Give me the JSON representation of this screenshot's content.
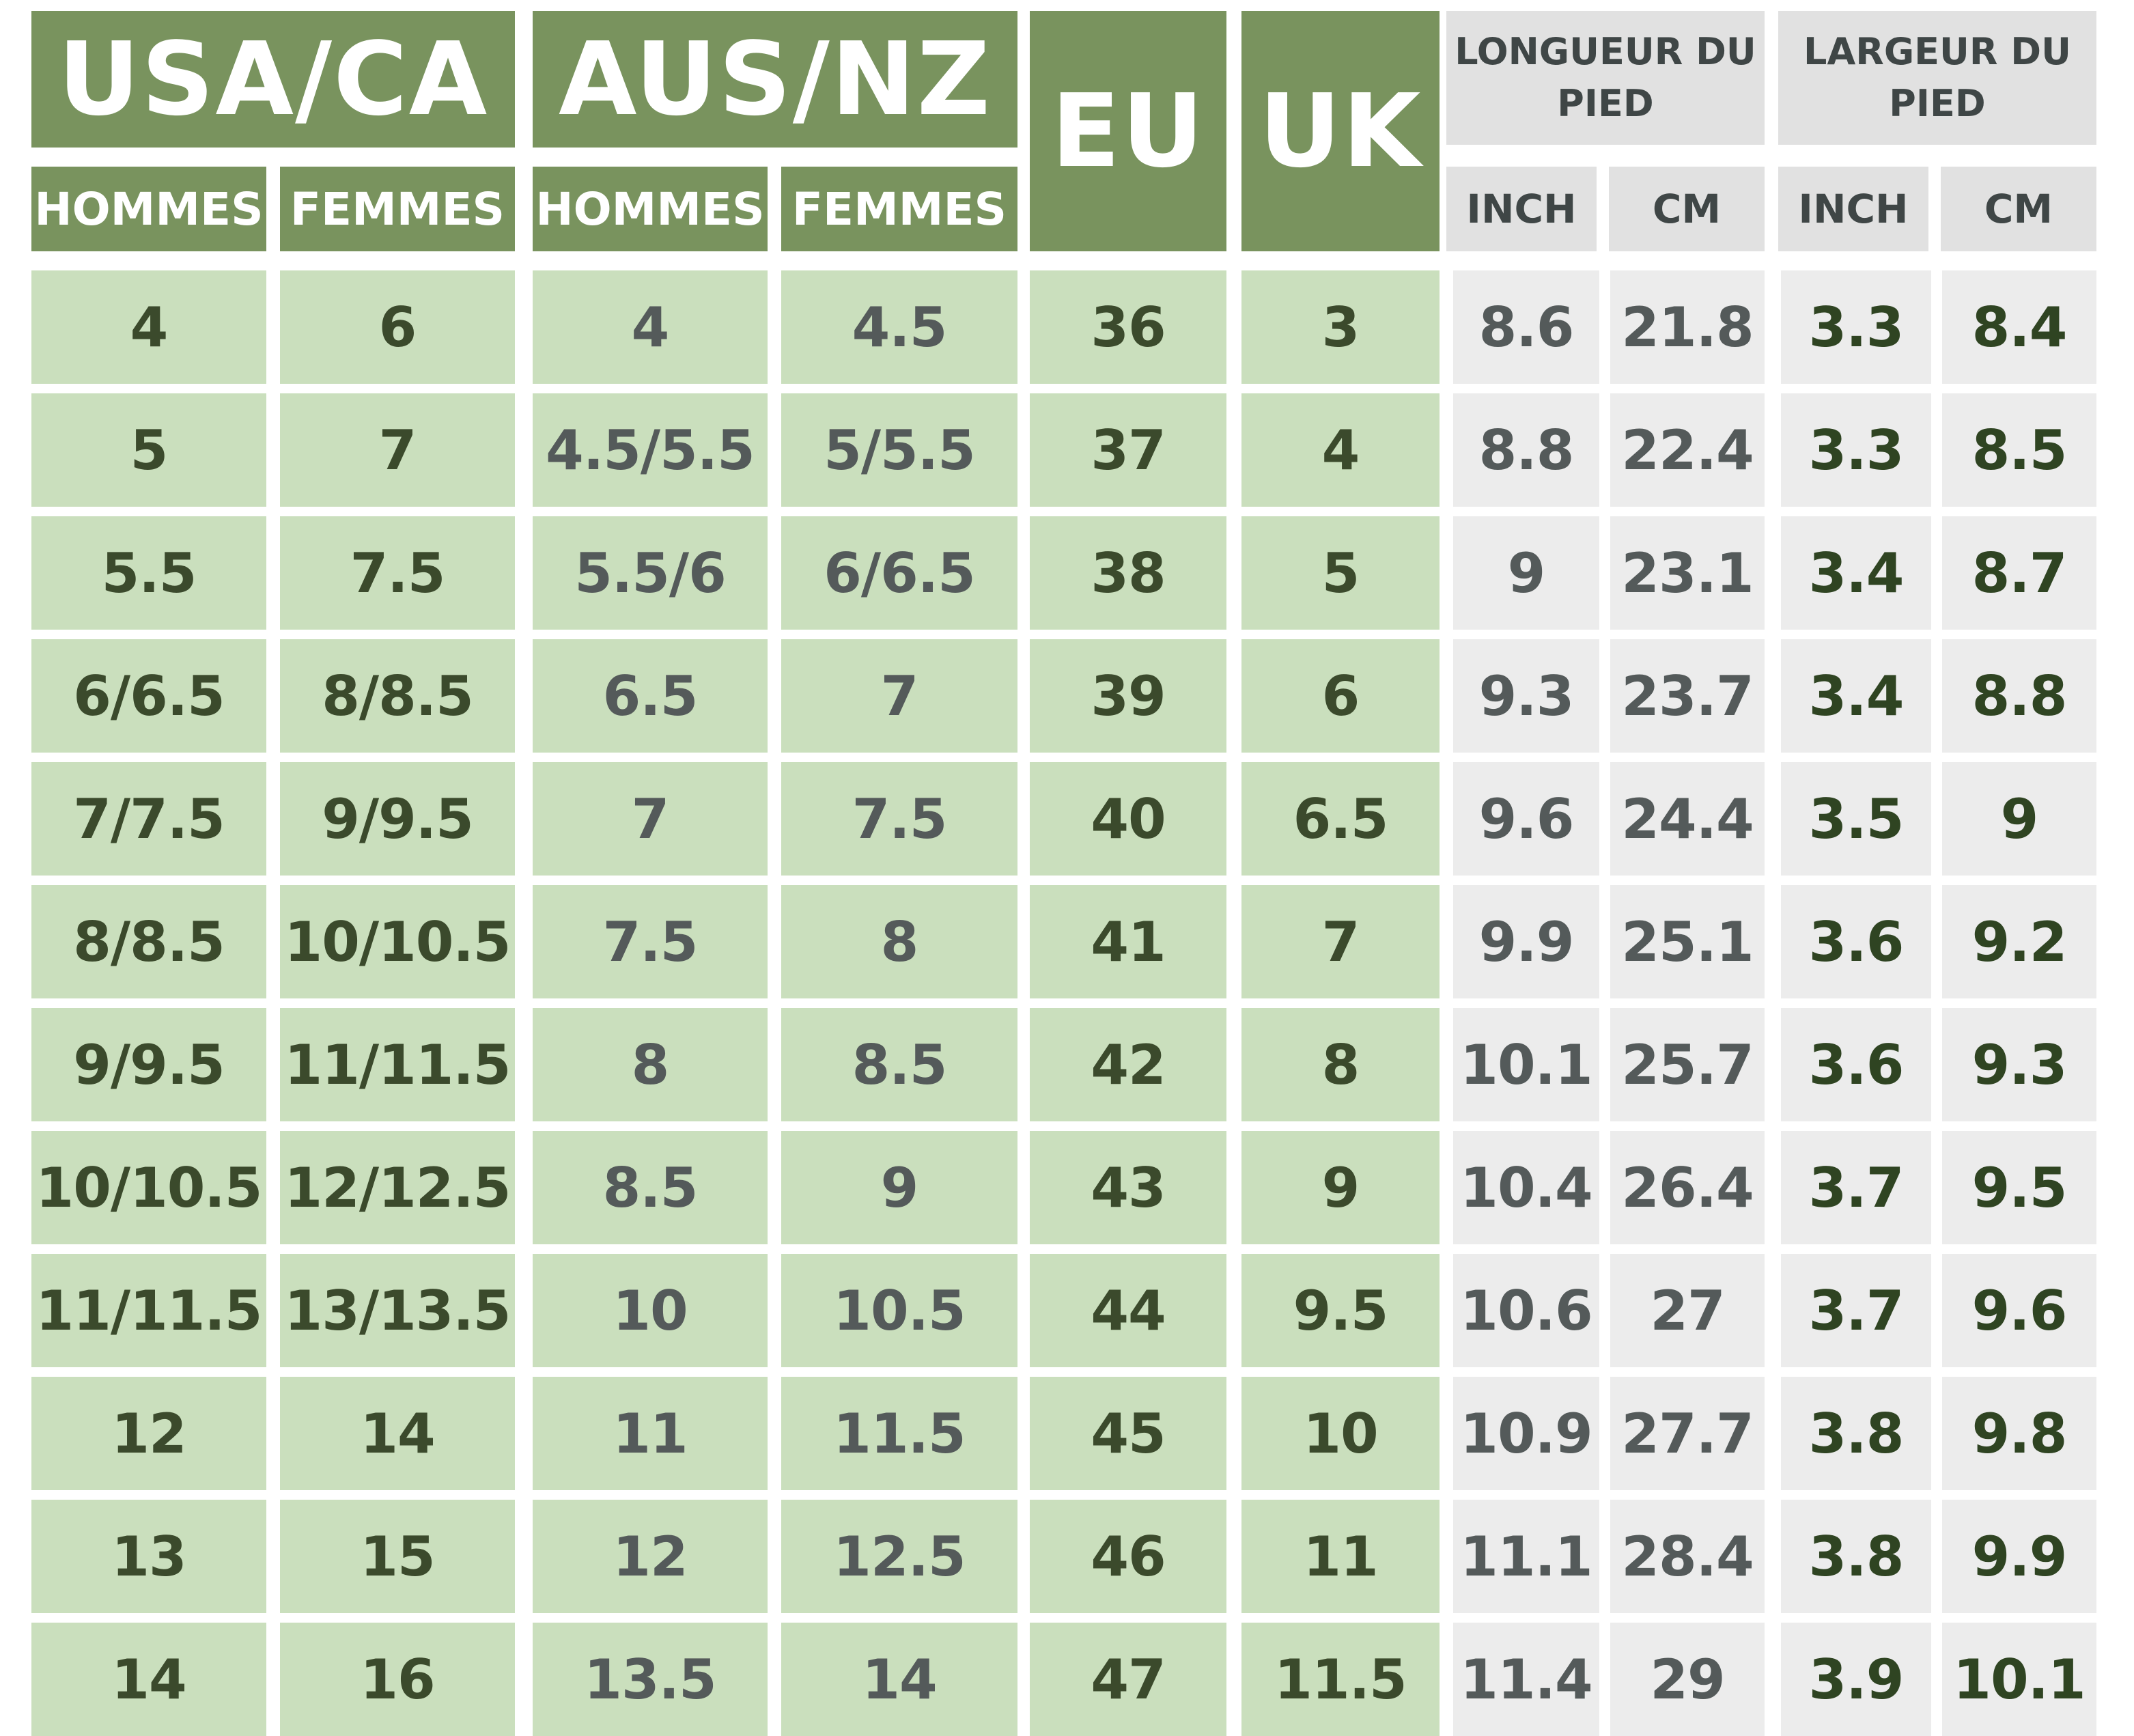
{
  "header": {
    "usa_ca": "USA/CA",
    "aus_nz": "AUS/NZ",
    "eu": "EU",
    "uk": "UK",
    "hommes": "HOMMES",
    "femmes": "FEMMES",
    "longueur": "LONGUEUR DU PIED",
    "largeur": "LARGEUR DU PIED",
    "inch": "INCH",
    "cm": "CM"
  },
  "colors": {
    "header_green": "#79935e",
    "cell_green": "#cadfbd",
    "header_gray": "#e1e1e1",
    "cell_gray": "#ececec"
  },
  "rows": [
    {
      "usa_h": "4",
      "usa_f": "6",
      "aus_h": "4",
      "aus_f": "4.5",
      "eu": "36",
      "uk": "3",
      "len_in": "8.6",
      "len_cm": "21.8",
      "wid_in": "3.3",
      "wid_cm": "8.4"
    },
    {
      "usa_h": "5",
      "usa_f": "7",
      "aus_h": "4.5/5.5",
      "aus_f": "5/5.5",
      "eu": "37",
      "uk": "4",
      "len_in": "8.8",
      "len_cm": "22.4",
      "wid_in": "3.3",
      "wid_cm": "8.5"
    },
    {
      "usa_h": "5.5",
      "usa_f": "7.5",
      "aus_h": "5.5/6",
      "aus_f": "6/6.5",
      "eu": "38",
      "uk": "5",
      "len_in": "9",
      "len_cm": "23.1",
      "wid_in": "3.4",
      "wid_cm": "8.7"
    },
    {
      "usa_h": "6/6.5",
      "usa_f": "8/8.5",
      "aus_h": "6.5",
      "aus_f": "7",
      "eu": "39",
      "uk": "6",
      "len_in": "9.3",
      "len_cm": "23.7",
      "wid_in": "3.4",
      "wid_cm": "8.8"
    },
    {
      "usa_h": "7/7.5",
      "usa_f": "9/9.5",
      "aus_h": "7",
      "aus_f": "7.5",
      "eu": "40",
      "uk": "6.5",
      "len_in": "9.6",
      "len_cm": "24.4",
      "wid_in": "3.5",
      "wid_cm": "9"
    },
    {
      "usa_h": "8/8.5",
      "usa_f": "10/10.5",
      "aus_h": "7.5",
      "aus_f": "8",
      "eu": "41",
      "uk": "7",
      "len_in": "9.9",
      "len_cm": "25.1",
      "wid_in": "3.6",
      "wid_cm": "9.2"
    },
    {
      "usa_h": "9/9.5",
      "usa_f": "11/11.5",
      "aus_h": "8",
      "aus_f": "8.5",
      "eu": "42",
      "uk": "8",
      "len_in": "10.1",
      "len_cm": "25.7",
      "wid_in": "3.6",
      "wid_cm": "9.3"
    },
    {
      "usa_h": "10/10.5",
      "usa_f": "12/12.5",
      "aus_h": "8.5",
      "aus_f": "9",
      "eu": "43",
      "uk": "9",
      "len_in": "10.4",
      "len_cm": "26.4",
      "wid_in": "3.7",
      "wid_cm": "9.5"
    },
    {
      "usa_h": "11/11.5",
      "usa_f": "13/13.5",
      "aus_h": "10",
      "aus_f": "10.5",
      "eu": "44",
      "uk": "9.5",
      "len_in": "10.6",
      "len_cm": "27",
      "wid_in": "3.7",
      "wid_cm": "9.6"
    },
    {
      "usa_h": "12",
      "usa_f": "14",
      "aus_h": "11",
      "aus_f": "11.5",
      "eu": "45",
      "uk": "10",
      "len_in": "10.9",
      "len_cm": "27.7",
      "wid_in": "3.8",
      "wid_cm": "9.8"
    },
    {
      "usa_h": "13",
      "usa_f": "15",
      "aus_h": "12",
      "aus_f": "12.5",
      "eu": "46",
      "uk": "11",
      "len_in": "11.1",
      "len_cm": "28.4",
      "wid_in": "3.8",
      "wid_cm": "9.9"
    },
    {
      "usa_h": "14",
      "usa_f": "16",
      "aus_h": "13.5",
      "aus_f": "14",
      "eu": "47",
      "uk": "11.5",
      "len_in": "11.4",
      "len_cm": "29",
      "wid_in": "3.9",
      "wid_cm": "10.1"
    }
  ]
}
